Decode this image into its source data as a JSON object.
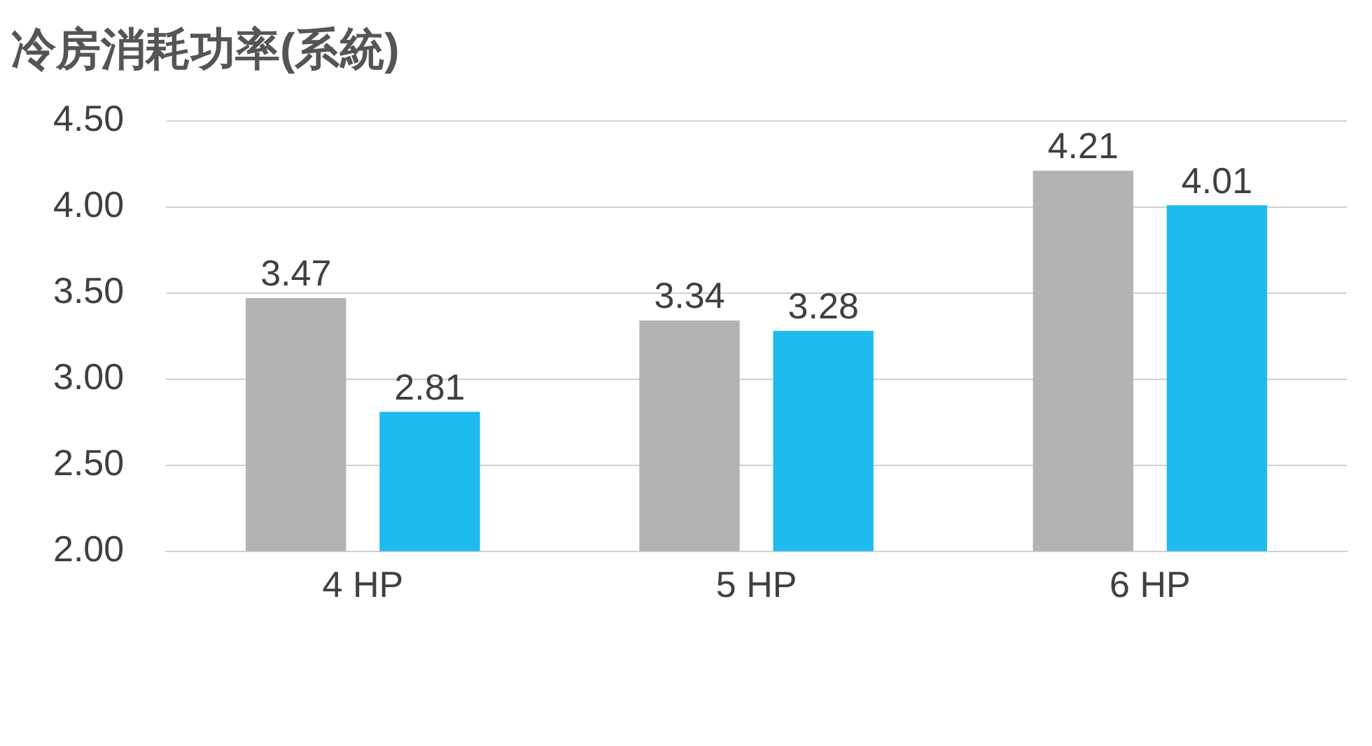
{
  "chart_data": {
    "type": "bar",
    "title": "冷房消耗功率(系統)",
    "categories": [
      "4 HP",
      "5 HP",
      "6 HP"
    ],
    "series": [
      {
        "color": "#b3b3b3",
        "values": [
          3.47,
          3.34,
          4.21
        ]
      },
      {
        "color": "#1ebbee",
        "values": [
          2.81,
          3.28,
          4.01
        ]
      }
    ],
    "ylim": [
      2,
      4.5
    ],
    "yticks": [
      {
        "value": 2,
        "label": "2.00"
      },
      {
        "value": 2.5,
        "label": "2.50"
      },
      {
        "value": 3,
        "label": "3.00"
      },
      {
        "value": 3.5,
        "label": "3.50"
      },
      {
        "value": 4,
        "label": "4.00"
      },
      {
        "value": 4.5,
        "label": "4.50"
      }
    ],
    "grid": "y",
    "data_labels": true,
    "legend": false
  }
}
